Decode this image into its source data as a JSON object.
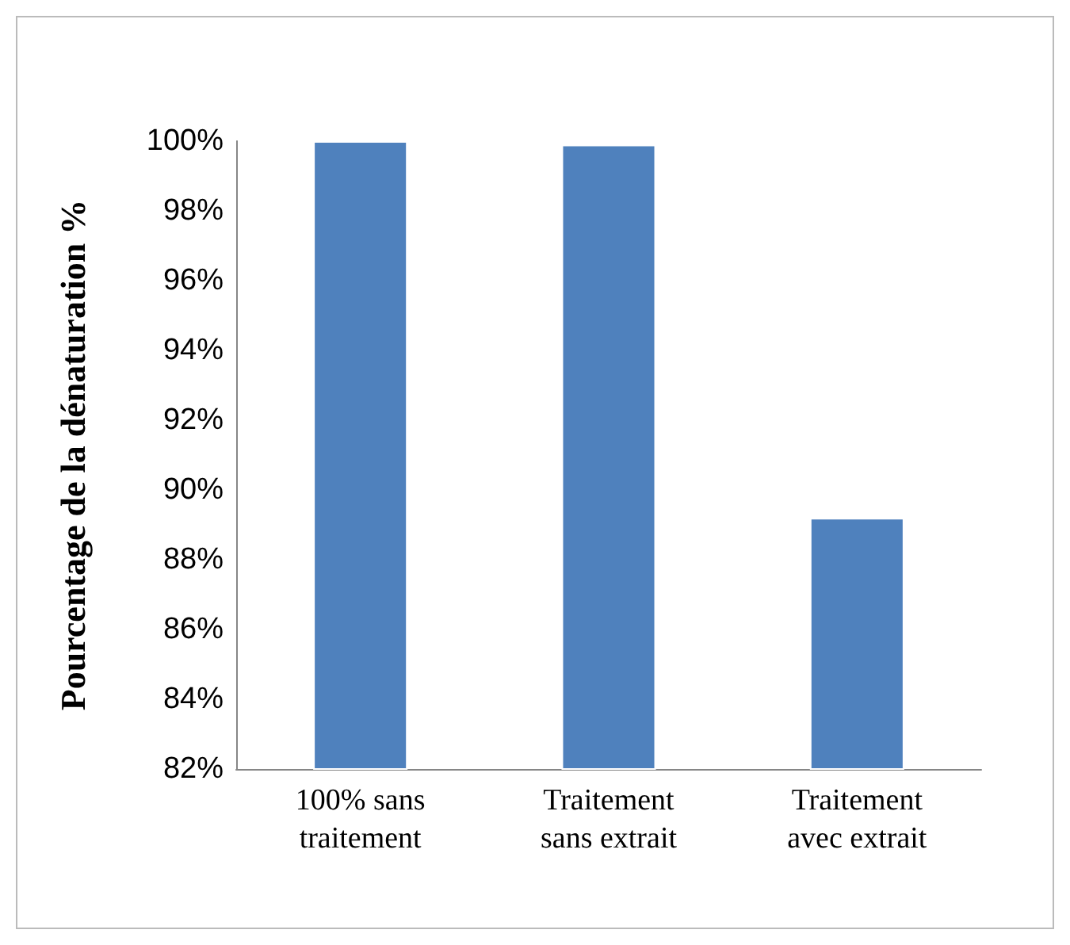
{
  "chart_data": {
    "type": "bar",
    "ylabel": "Pourcentage de la dénaturation %",
    "categories": [
      "100% sans\ntraitement",
      "Traitement\nsans extrait",
      "Traitement\navec extrait"
    ],
    "values": [
      100,
      99.9,
      89.2
    ],
    "color": "#4f81bd",
    "ylim": [
      82,
      100
    ],
    "yticks": [
      {
        "value": 82,
        "label": "82%"
      },
      {
        "value": 84,
        "label": "84%"
      },
      {
        "value": 86,
        "label": "86%"
      },
      {
        "value": 88,
        "label": "88%"
      },
      {
        "value": 90,
        "label": "90%"
      },
      {
        "value": 92,
        "label": "92%"
      },
      {
        "value": 94,
        "label": "94%"
      },
      {
        "value": 96,
        "label": "96%"
      },
      {
        "value": 98,
        "label": "98%"
      },
      {
        "value": 100,
        "label": "100%"
      }
    ],
    "grid": false
  }
}
